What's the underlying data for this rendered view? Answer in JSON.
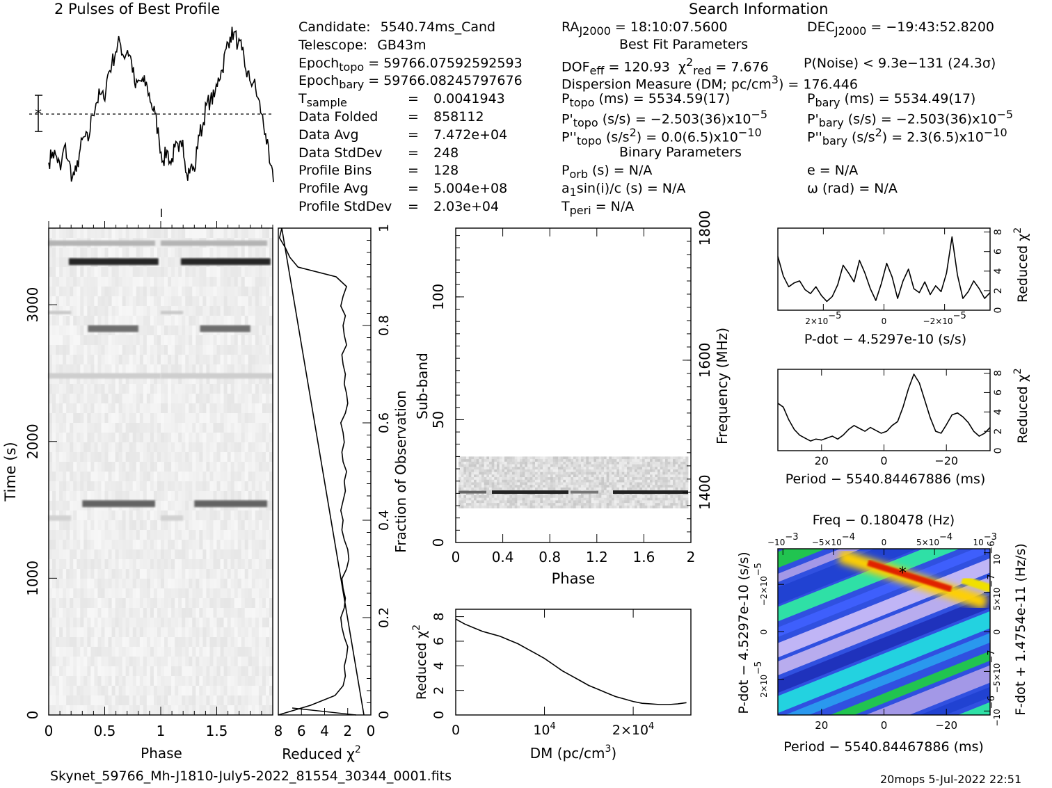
{
  "profile": {
    "title": "2 Pulses of Best Profile",
    "values": [
      0.13,
      0.2,
      0.17,
      0.08,
      0.24,
      0.14,
      0.03,
      0.07,
      0.22,
      0.3,
      0.27,
      0.44,
      0.52,
      0.58,
      0.55,
      0.71,
      0.78,
      0.86,
      0.93,
      0.83,
      0.87,
      0.8,
      0.62,
      0.67,
      0.66,
      0.63,
      0.52,
      0.45,
      0.28,
      0.14,
      0.21,
      0.12,
      0.23,
      0.2,
      0.28,
      0.06,
      0.1,
      0.07,
      0.31,
      0.36,
      0.51,
      0.54,
      0.56,
      0.69,
      0.74,
      0.88,
      0.96,
      0.99,
      0.91,
      0.87,
      0.74,
      0.67,
      0.66,
      0.56,
      0.45,
      0.32,
      0.13,
      0.0
    ]
  },
  "info": {
    "left": [
      {
        "k": "Candidate:",
        "v": "5540.74ms_Cand"
      },
      {
        "k": "Telescope:",
        "v": "GB43m"
      },
      {
        "k": "Epoch",
        "sub": "topo",
        "v": "= 59766.07592592593"
      },
      {
        "k": "Epoch",
        "sub": "bary",
        "v": "= 59766.08245797676"
      },
      {
        "k": "T",
        "sub": "sample",
        "eq": "=",
        "v": "0.0041943"
      },
      {
        "k": "Data Folded",
        "eq": "=",
        "v": "858112"
      },
      {
        "k": "Data Avg",
        "eq": "=",
        "v": "7.472e+04"
      },
      {
        "k": "Data StdDev",
        "eq": "=",
        "v": "248"
      },
      {
        "k": "Profile Bins",
        "eq": "=",
        "v": "128"
      },
      {
        "k": "Profile Avg",
        "eq": "=",
        "v": "5.004e+08"
      },
      {
        "k": "Profile StdDev",
        "eq": "=",
        "v": "2.03e+04"
      }
    ],
    "search_title": "Search Information",
    "ra": {
      "k": "RA",
      "sub": "J2000",
      "v": "= 18:10:07.5600"
    },
    "dec": {
      "k": "DEC",
      "sub": "J2000",
      "v": "= −19:43:52.8200"
    },
    "best_fit_title": "Best Fit Parameters",
    "dof": {
      "k": "DOF",
      "sub": "eff",
      "v": "= 120.93"
    },
    "chi": {
      "sup": "2",
      "sub": "red",
      "v": "= 7.676"
    },
    "pnoise": "P(Noise) < 9.3e−131   (24.3σ)",
    "dm_line": {
      "a": "Dispersion Measure (DM; pc/cm",
      "sup": "3",
      "b": ") = 176.446"
    },
    "ptopo": {
      "k": "P",
      "sub": "topo",
      "v": "(ms) =  5534.59(17)"
    },
    "pbary": {
      "k": "P",
      "sub": "bary",
      "v": "(ms) =  5534.49(17)"
    },
    "pdtopo": {
      "k": "P'",
      "sub": "topo",
      "v": "(s/s) = −2.503(36)x10",
      "sup": "−5"
    },
    "pdbary": {
      "k": "P'",
      "sub": "bary",
      "v": "(s/s) = −2.503(36)x10",
      "sup": "−5"
    },
    "pddtopo": {
      "k": "P''",
      "sub": "topo",
      "a": "(s/s",
      "sup1": "2",
      "v": ") = 0.0(6.5)x10",
      "sup": "−10"
    },
    "pddbary": {
      "k": "P''",
      "sub": "bary",
      "a": "(s/s",
      "sup1": "2",
      "v": ") =  2.3(6.5)x10",
      "sup": "−10"
    },
    "binary_title": "Binary Parameters",
    "porb": {
      "k": "P",
      "sub": "orb",
      "v": "(s) = N/A"
    },
    "ecc": "e = N/A",
    "a1": {
      "a": "a",
      "sub": "1",
      "b": "sin(i)/c (s) = N/A"
    },
    "omega": "ω (rad) = N/A",
    "tperi": {
      "k": "T",
      "sub": "peri",
      "v": "= N/A"
    }
  },
  "time_phase": {
    "xlabel": "Phase",
    "ylabel": "Time (s)",
    "xticks": [
      "0",
      "0.5",
      "1",
      "1.5"
    ],
    "xtick_values": [
      0,
      0.5,
      1,
      1.5
    ],
    "yticks": [
      "0",
      "1000",
      "2000",
      "3000"
    ],
    "ytick_values": [
      0,
      1000,
      2000,
      3000
    ],
    "xlim": [
      0,
      2
    ],
    "ylim": [
      0,
      3560
    ]
  },
  "redchi_time": {
    "xlabel": "Reduced χ",
    "xlabel_sup": "2",
    "xticks": [
      "8",
      "6",
      "4",
      "2",
      "0"
    ],
    "xtick_values": [
      8,
      6,
      4,
      2,
      0
    ],
    "right_label": "Fraction of Observation",
    "rticks": [
      "0",
      "0.2",
      "0.4",
      "0.6",
      "0.8",
      "1"
    ],
    "rtick_values": [
      0,
      0.2,
      0.4,
      0.6,
      0.8,
      1
    ],
    "xlim": [
      8,
      0
    ],
    "ylim": [
      0,
      1
    ],
    "chi": [
      8.0,
      5.2,
      3.1,
      2.4,
      2.2,
      2.3,
      2.1,
      2.0,
      2.3,
      2.5,
      2.6,
      2.3,
      2.2,
      2.4,
      2.5,
      2.1,
      1.9,
      2.0,
      2.3,
      2.5,
      2.4,
      2.6,
      2.4,
      2.2,
      2.3,
      2.1,
      2.4,
      2.5,
      2.3,
      2.4,
      2.6,
      2.2,
      2.0,
      2.1,
      2.3,
      2.2,
      2.4,
      2.5,
      2.1,
      2.3,
      2.4,
      2.2,
      2.6,
      2.4,
      2.1,
      3.0,
      6.3,
      7.0,
      7.4,
      7.9,
      7.7
    ],
    "frac": [
      0.0,
      0.02,
      0.04,
      0.06,
      0.08,
      0.1,
      0.12,
      0.14,
      0.16,
      0.18,
      0.2,
      0.22,
      0.24,
      0.26,
      0.28,
      0.3,
      0.32,
      0.34,
      0.36,
      0.38,
      0.4,
      0.42,
      0.44,
      0.46,
      0.48,
      0.5,
      0.52,
      0.54,
      0.56,
      0.58,
      0.6,
      0.62,
      0.64,
      0.66,
      0.68,
      0.7,
      0.72,
      0.74,
      0.76,
      0.78,
      0.8,
      0.82,
      0.84,
      0.86,
      0.88,
      0.9,
      0.92,
      0.94,
      0.96,
      0.98,
      1.0
    ]
  },
  "subband": {
    "xlabel": "Phase",
    "ylabel": "Sub-band",
    "right_label": "Frequency (MHz)",
    "xticks": [
      "0",
      "0.4",
      "0.8",
      "1.2",
      "1.6",
      "2"
    ],
    "xtick_values": [
      0,
      0.4,
      0.8,
      1.2,
      1.6,
      2
    ],
    "yticks": [
      "0",
      "50",
      "100"
    ],
    "ytick_values": [
      0,
      50,
      100
    ],
    "rticks": [
      "1400",
      "1600",
      "1800"
    ],
    "rtick_values": [
      1400,
      1600,
      1800
    ],
    "xlim": [
      0,
      2
    ],
    "ylim": [
      0,
      128
    ],
    "freq_lim": [
      1324,
      1800
    ],
    "band_range": [
      14,
      35
    ],
    "bright_subband": 20.5
  },
  "dm_curve": {
    "xlabel": "DM (pc/cm",
    "xlabel_sup": "3",
    "xlabel_end": ")",
    "ylabel": "Reduced χ",
    "ylabel_sup": "2",
    "xticks": [
      "0",
      "10",
      "2×10"
    ],
    "xtick_sups": [
      "",
      "4",
      "4"
    ],
    "xtick_values": [
      0,
      10000,
      20000
    ],
    "yticks": [
      "0",
      "2",
      "4",
      "6",
      "8"
    ],
    "ytick_values": [
      0,
      2,
      4,
      6,
      8
    ],
    "xlim": [
      0,
      26500
    ],
    "ylim": [
      0,
      8.6
    ],
    "x": [
      0,
      1000,
      2000,
      3000,
      4000,
      5000,
      6000,
      7000,
      8000,
      9000,
      10000,
      11000,
      12000,
      13000,
      14000,
      15000,
      16000,
      17000,
      18000,
      19000,
      20000,
      21000,
      22000,
      23000,
      24000,
      25000,
      26000
    ],
    "y": [
      7.8,
      7.4,
      7.1,
      6.8,
      6.6,
      6.4,
      6.1,
      5.8,
      5.4,
      5.0,
      4.6,
      4.1,
      3.6,
      3.2,
      2.8,
      2.4,
      2.1,
      1.8,
      1.5,
      1.3,
      1.1,
      0.95,
      0.9,
      0.85,
      0.85,
      0.9,
      1.0
    ]
  },
  "pdot_curve": {
    "xlabel": "P-dot − 4.5297e-10 (s/s)",
    "ylabel": "Reduced χ",
    "ylabel_sup": "2",
    "xticks": [
      "2×10",
      "0",
      "−2×10"
    ],
    "xtick_sups": [
      "−5",
      "",
      ""
    ],
    "xtick_sup2": "−5",
    "xtick_values": [
      2e-05,
      0,
      -2e-05
    ],
    "yticks": [
      "0",
      "2",
      "4",
      "6",
      "8"
    ],
    "ytick_values": [
      0,
      2,
      4,
      6,
      8
    ],
    "xlim": [
      3.5e-05,
      -3.5e-05
    ],
    "ylim": [
      0,
      8.4
    ],
    "y": [
      5.5,
      3.5,
      2.4,
      2.8,
      3.0,
      2.1,
      1.7,
      2.4,
      1.5,
      0.9,
      1.4,
      2.6,
      4.6,
      3.8,
      2.9,
      5.1,
      3.8,
      2.2,
      1.0,
      2.7,
      4.8,
      3.4,
      1.2,
      3.0,
      4.2,
      2.2,
      1.8,
      2.9,
      1.6,
      2.5,
      1.9,
      3.8,
      7.5,
      3.6,
      1.2,
      1.9,
      3.0,
      2.2,
      1.2,
      1.8
    ]
  },
  "period_curve": {
    "xlabel": "Period − 5540.84467886 (ms)",
    "ylabel": "Reduced χ",
    "ylabel_sup": "2",
    "xticks": [
      "20",
      "0",
      "−20"
    ],
    "xtick_values": [
      20,
      0,
      -20
    ],
    "yticks": [
      "0",
      "2",
      "4",
      "6",
      "8"
    ],
    "ytick_values": [
      0,
      2,
      4,
      6,
      8
    ],
    "xlim": [
      34,
      -34
    ],
    "ylim": [
      0,
      8.4
    ],
    "y": [
      4.9,
      4.5,
      3.2,
      2.2,
      1.6,
      1.3,
      1.0,
      1.2,
      1.1,
      1.3,
      1.5,
      1.2,
      1.6,
      2.2,
      2.6,
      2.3,
      2.0,
      2.4,
      2.1,
      1.8,
      2.0,
      2.6,
      3.0,
      4.5,
      6.4,
      7.9,
      7.0,
      5.2,
      3.4,
      2.0,
      1.8,
      2.7,
      3.7,
      3.9,
      3.5,
      2.9,
      2.0,
      1.5,
      1.8,
      2.4
    ]
  },
  "pp_plane": {
    "top_title": "Freq − 0.180478 (Hz)",
    "xlabel": "Period − 5540.84467886 (ms)",
    "ylabel": "P-dot − 4.5297e-10 (s/s)",
    "right_label": "F-dot + 1.4754e-11 (Hz/s)",
    "xticks": [
      "20",
      "0",
      "−20"
    ],
    "xtick_values": [
      20,
      0,
      -20
    ],
    "top_ticks": [
      "−10",
      "−5×10",
      "0",
      "5×10",
      "10"
    ],
    "top_tick_sups": [
      "−3",
      "−4",
      "",
      "−4",
      "−3"
    ],
    "top_tick_values": [
      -0.001,
      -0.0005,
      0,
      0.0005,
      0.001
    ],
    "yticks": [
      "−2×10",
      "0",
      "2×10"
    ],
    "ytick_sups": [
      "−5",
      "",
      "−5"
    ],
    "ytick_values": [
      -2e-05,
      0,
      2e-05
    ],
    "rticks": [
      "10",
      "5×10",
      "0",
      "−5×10",
      "−10"
    ],
    "rtick_sups": [
      "−6",
      "−7",
      "",
      "−7",
      "−6"
    ],
    "rtick_values": [
      1e-06,
      5e-07,
      0,
      -5e-07,
      -1e-06
    ],
    "xlim": [
      34,
      -34
    ],
    "ylim": [
      3.5e-05,
      -3.5e-05
    ],
    "best": {
      "x": -6,
      "y": -2.5e-05
    }
  },
  "footer": {
    "filename": "Skynet_59766_Mh-J1810-July5-2022_81554_30344_0001.fits",
    "stamp": "20mops   5-Jul-2022 22:51"
  }
}
